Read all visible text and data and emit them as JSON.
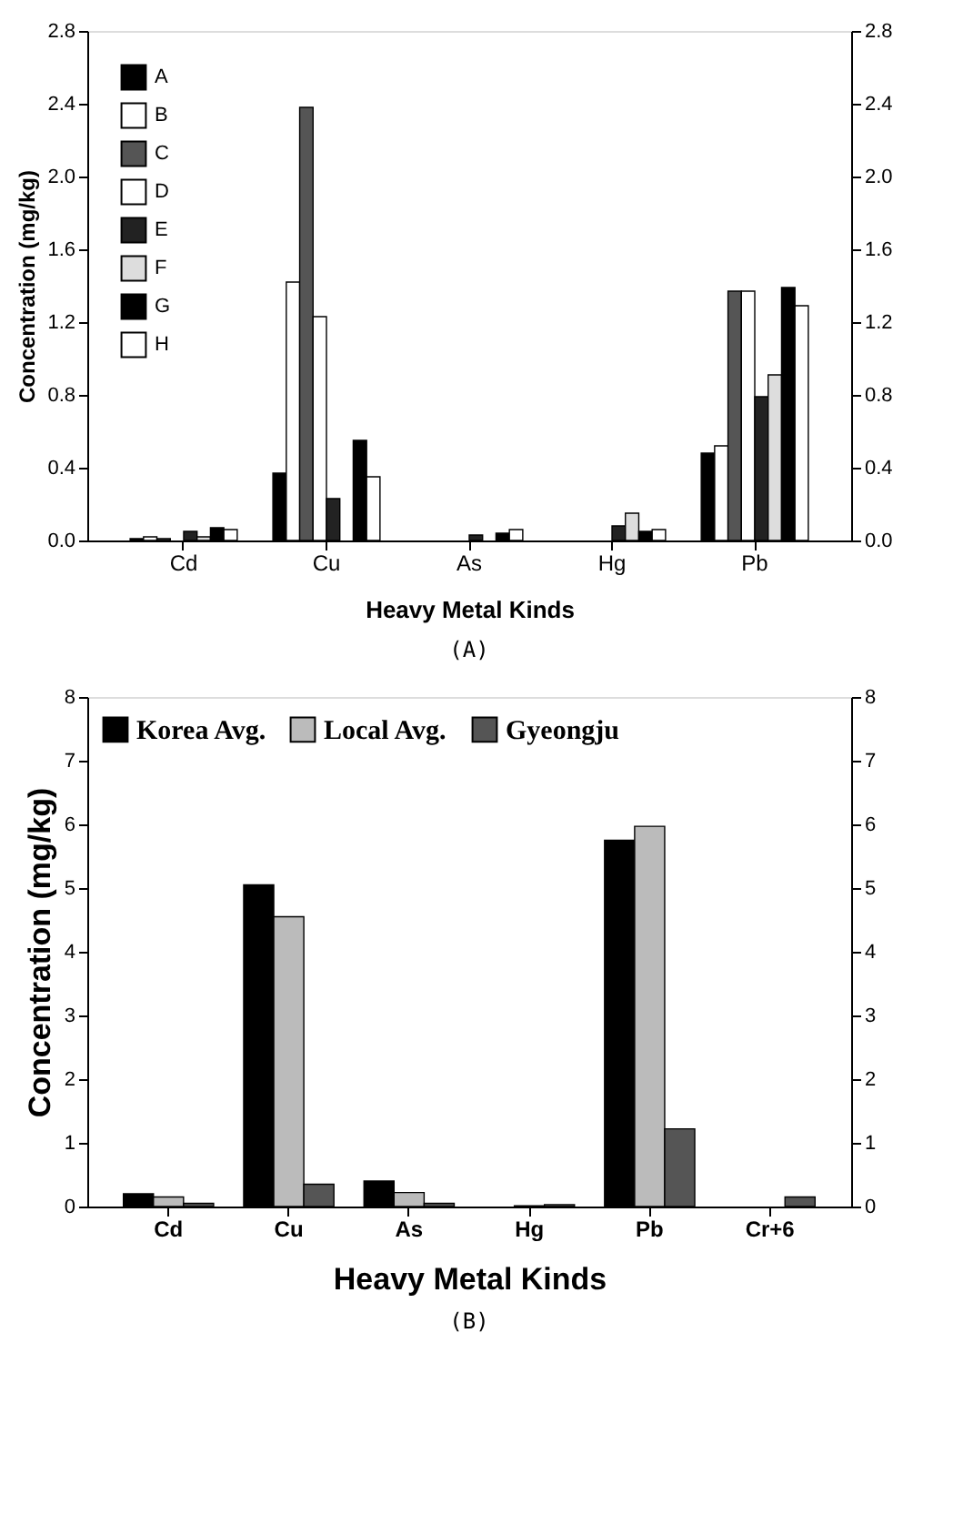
{
  "chart_data": [
    {
      "type": "bar",
      "xlabel": "Heavy Metal Kinds",
      "ylabel": "Concentration (mg/kg)",
      "annotations": [
        "(A)"
      ],
      "categories": [
        "Cd",
        "Cu",
        "As",
        "Hg",
        "Pb"
      ],
      "series": [
        {
          "name": "A",
          "color": "#000000",
          "values": [
            0.01,
            0.37,
            null,
            null,
            0.48
          ]
        },
        {
          "name": "B",
          "color": "#ffffff",
          "values": [
            0.02,
            1.42,
            null,
            null,
            0.52
          ]
        },
        {
          "name": "C",
          "color": "#555555",
          "values": [
            0.01,
            2.38,
            null,
            null,
            1.37
          ]
        },
        {
          "name": "D",
          "color": "#ffffff",
          "values": [
            null,
            1.23,
            null,
            null,
            1.37
          ]
        },
        {
          "name": "E",
          "color": "#222222",
          "values": [
            0.05,
            0.23,
            0.03,
            0.08,
            0.79
          ]
        },
        {
          "name": "F",
          "color": "#dddddd",
          "values": [
            0.02,
            null,
            null,
            0.15,
            0.91
          ]
        },
        {
          "name": "G",
          "color": "#000000",
          "values": [
            0.07,
            0.55,
            0.04,
            0.05,
            1.39
          ]
        },
        {
          "name": "H",
          "color": "#ffffff",
          "values": [
            0.06,
            0.35,
            0.06,
            0.06,
            1.29
          ]
        }
      ],
      "ylim": [
        0,
        2.8
      ],
      "yticks": [
        {
          "value": 0,
          "label": "0.0"
        },
        0.4,
        0.8,
        1.2,
        1.6,
        {
          "value": 2,
          "label": "2.0"
        },
        2.4,
        2.8
      ],
      "y2lim": [
        0,
        2.8
      ],
      "y2ticks": [
        {
          "value": 0,
          "label": "0.0"
        },
        0.4,
        0.8,
        1.2,
        1.6,
        {
          "value": 2,
          "label": "2.0"
        },
        2.4,
        2.8
      ],
      "legend": "top left"
    },
    {
      "type": "bar",
      "xlabel": "Heavy Metal Kinds",
      "ylabel": "Concentration (mg/kg)",
      "annotations": [
        "(B)"
      ],
      "categories": [
        "Cd",
        "Cu",
        "As",
        "Hg",
        "Pb",
        "Cr+6"
      ],
      "series": [
        {
          "name": "Korea Avg.",
          "color": "#000000",
          "values": [
            0.2,
            5.05,
            0.4,
            null,
            5.75,
            null
          ]
        },
        {
          "name": "Local Avg.",
          "color": "#bbbbbb",
          "values": [
            0.15,
            4.55,
            0.22,
            0.01,
            5.97,
            null
          ]
        },
        {
          "name": "Gyeongju",
          "color": "#555555",
          "values": [
            0.05,
            0.35,
            0.05,
            0.03,
            1.22,
            0.15
          ]
        }
      ],
      "ylim": [
        0,
        8
      ],
      "yticks": [
        0,
        1,
        2,
        3,
        4,
        5,
        6,
        7,
        8
      ],
      "y2lim": [
        0,
        8
      ],
      "y2ticks": [
        0,
        1,
        2,
        3,
        4,
        5,
        6,
        7,
        8
      ],
      "legend": "top"
    }
  ]
}
